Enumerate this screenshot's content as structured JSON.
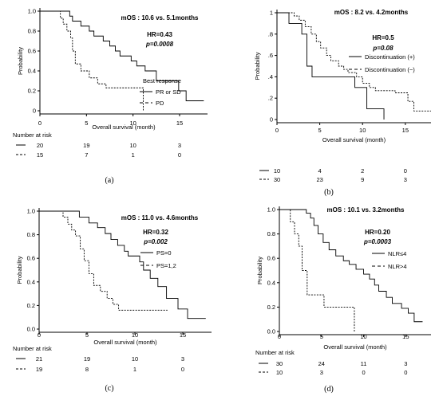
{
  "chart_data": [
    {
      "type": "line",
      "panel_label": "(a)",
      "title": "mOS : 10.6 vs. 5.1months",
      "xlabel": "Overall survival (month)",
      "ylabel": "Probability",
      "xlim": [
        0,
        18
      ],
      "ylim": [
        0,
        1.0
      ],
      "x_ticks": [
        "0",
        "5",
        "10",
        "15"
      ],
      "y_ticks": [
        "0",
        "0.2",
        "0.4",
        "0.6",
        "0.8",
        "1.0"
      ],
      "stats": [
        "HR=0.43",
        "p=0.0008"
      ],
      "legend_title": "Best response",
      "series": [
        {
          "name": "PR or SD",
          "style": "solid",
          "x": [
            0,
            2.9,
            3.2,
            3.5,
            4.4,
            5.3,
            5.8,
            6.8,
            7.5,
            8.1,
            8.6,
            9.8,
            10.4,
            11.3,
            12.5,
            14.9,
            15.7,
            17.6
          ],
          "y": [
            1.0,
            1.0,
            0.95,
            0.9,
            0.85,
            0.8,
            0.75,
            0.7,
            0.65,
            0.6,
            0.55,
            0.5,
            0.45,
            0.4,
            0.3,
            0.2,
            0.1,
            0.1
          ]
        },
        {
          "name": "PD",
          "style": "dashed",
          "x": [
            0,
            1.8,
            2.2,
            2.5,
            2.9,
            3.3,
            3.5,
            3.8,
            4.4,
            5.3,
            6.2,
            7.1,
            11.1
          ],
          "y": [
            1.0,
            1.0,
            0.93,
            0.87,
            0.8,
            0.73,
            0.6,
            0.47,
            0.4,
            0.33,
            0.27,
            0.23,
            0.0
          ]
        }
      ],
      "number_at_risk": {
        "header": "Number at risk",
        "rows": [
          [
            "20",
            "19",
            "10",
            "3"
          ],
          [
            "15",
            "7",
            "1",
            "0"
          ]
        ]
      }
    },
    {
      "type": "line",
      "panel_label": "(b)",
      "title": "mOS : 8.2 vs. 4.2months",
      "xlabel": "Overall survival (month)",
      "ylabel": "Probability",
      "xlim": [
        0,
        18
      ],
      "ylim": [
        0,
        1.0
      ],
      "x_ticks": [
        "0",
        "5",
        "10",
        "15"
      ],
      "y_ticks": [
        "0",
        ".2",
        ".4",
        ".6",
        ".8",
        "1"
      ],
      "stats": [
        "HR=0.5",
        "p=0.08"
      ],
      "legend_title": "",
      "series": [
        {
          "name": "Discontinuation (+)",
          "style": "solid",
          "x": [
            0,
            1.4,
            2.9,
            3.5,
            4.1,
            9.1,
            10.5,
            12.5
          ],
          "y": [
            1.0,
            0.9,
            0.8,
            0.5,
            0.4,
            0.3,
            0.1,
            0.0
          ]
        },
        {
          "name": "Discontinuation (−)",
          "style": "dashed",
          "x": [
            0,
            2.0,
            2.6,
            3.3,
            4.0,
            4.6,
            5.1,
            5.8,
            6.3,
            7.2,
            7.8,
            8.3,
            9.3,
            10.0,
            10.8,
            11.5,
            13.8,
            15.3,
            16.0,
            18.0
          ],
          "y": [
            1.0,
            0.97,
            0.93,
            0.87,
            0.8,
            0.73,
            0.67,
            0.6,
            0.55,
            0.5,
            0.47,
            0.44,
            0.4,
            0.34,
            0.3,
            0.27,
            0.25,
            0.17,
            0.08,
            0.08
          ]
        }
      ],
      "number_at_risk": {
        "header": "",
        "rows": [
          [
            "10",
            "4",
            "2",
            "0"
          ],
          [
            "30",
            "23",
            "9",
            "3"
          ]
        ]
      }
    },
    {
      "type": "line",
      "panel_label": "(c)",
      "title": "mOS : 11.0 vs. 4.6months",
      "xlabel": "Overall survival (month)",
      "ylabel": "Probability",
      "xlim": [
        0,
        18
      ],
      "ylim": [
        0,
        1.0
      ],
      "x_ticks": [
        "0",
        "5",
        "10",
        "15"
      ],
      "y_ticks": [
        "0.0",
        "0.2",
        "0.4",
        "0.6",
        "0.8",
        "1.0"
      ],
      "stats": [
        "HR=0.32",
        "p=0.002"
      ],
      "legend_title": "",
      "series": [
        {
          "name": "PS=0",
          "style": "solid",
          "x": [
            0,
            2.8,
            4.2,
            5.2,
            6.1,
            6.9,
            7.5,
            8.2,
            8.9,
            9.3,
            10.5,
            10.9,
            11.6,
            12.4,
            13.3,
            14.5,
            15.5,
            17.4
          ],
          "y": [
            1.0,
            1.0,
            0.95,
            0.9,
            0.86,
            0.81,
            0.76,
            0.71,
            0.66,
            0.62,
            0.57,
            0.5,
            0.43,
            0.36,
            0.26,
            0.17,
            0.09,
            0.09
          ]
        },
        {
          "name": "PS=1,2",
          "style": "dashed",
          "x": [
            0,
            2.0,
            2.5,
            3.0,
            3.4,
            3.8,
            4.3,
            4.7,
            5.2,
            5.7,
            6.4,
            7.1,
            7.7,
            8.3,
            9.5,
            13.4
          ],
          "y": [
            1.0,
            1.0,
            0.95,
            0.89,
            0.84,
            0.79,
            0.68,
            0.58,
            0.47,
            0.37,
            0.32,
            0.26,
            0.21,
            0.16,
            0.16,
            0.16
          ]
        }
      ],
      "number_at_risk": {
        "header": "Number at risk",
        "rows": [
          [
            "21",
            "19",
            "10",
            "3"
          ],
          [
            "19",
            "8",
            "1",
            "0"
          ]
        ]
      }
    },
    {
      "type": "line",
      "panel_label": "(d)",
      "title": "mOS : 10.1 vs. 3.2months",
      "xlabel": "Overall survival (month)",
      "ylabel": "Probability",
      "xlim": [
        0,
        18
      ],
      "ylim": [
        0,
        1.0
      ],
      "x_ticks": [
        "0",
        "5",
        "10",
        "15"
      ],
      "y_ticks": [
        "0.0",
        "0.2",
        "0.4",
        "0.6",
        "0.8",
        "1.0"
      ],
      "stats": [
        "HR=0.20",
        "p=0.0003"
      ],
      "legend_title": "",
      "series": [
        {
          "name": "NLR≤4",
          "style": "solid",
          "x": [
            0,
            2.6,
            3.2,
            3.7,
            4.1,
            4.6,
            5.2,
            5.9,
            6.7,
            7.6,
            8.3,
            9.1,
            10.0,
            10.7,
            11.3,
            11.8,
            12.7,
            13.4,
            14.5,
            15.3,
            16.0,
            17.0
          ],
          "y": [
            1.0,
            1.0,
            0.97,
            0.93,
            0.87,
            0.8,
            0.73,
            0.67,
            0.62,
            0.58,
            0.55,
            0.51,
            0.47,
            0.43,
            0.38,
            0.33,
            0.28,
            0.23,
            0.19,
            0.15,
            0.08,
            0.08
          ]
        },
        {
          "name": "NLR>4",
          "style": "dashed",
          "x": [
            0,
            1.3,
            1.8,
            2.3,
            2.7,
            3.3,
            5.3,
            6.2,
            8.9
          ],
          "y": [
            1.0,
            0.9,
            0.8,
            0.7,
            0.5,
            0.3,
            0.2,
            0.2,
            0.0
          ]
        }
      ],
      "number_at_risk": {
        "header": "Number at risk",
        "rows": [
          [
            "30",
            "24",
            "11",
            "3"
          ],
          [
            "10",
            "3",
            "0",
            "0"
          ]
        ]
      }
    }
  ]
}
